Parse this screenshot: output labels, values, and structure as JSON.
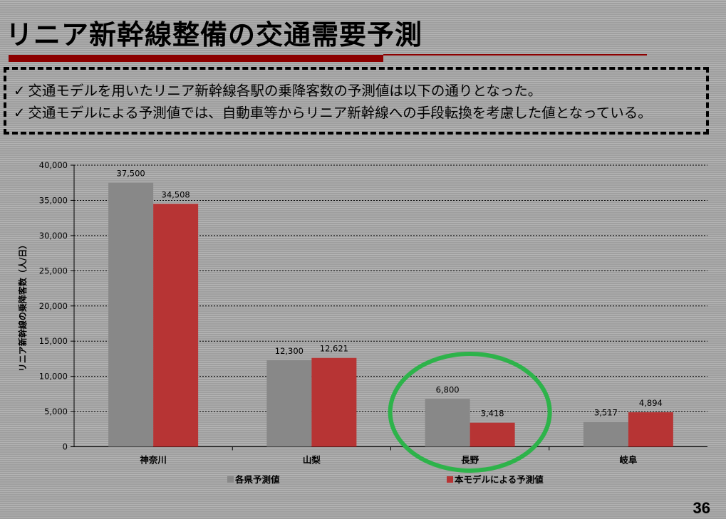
{
  "slide": {
    "title": "リニア新幹線整備の交通需要予測",
    "notes": [
      "交通モデルを用いたリニア新幹線各駅の乗降客数の予測値は以下の通りとなった。",
      "交通モデルによる予測値では、自動車等からリニア新幹線への手段転換を考慮した値となっている。"
    ],
    "check_symbol": "✓",
    "page_number": "36",
    "highlight_color": "#2db34a"
  },
  "chart_data": {
    "type": "bar",
    "categories": [
      "神奈川",
      "山梨",
      "長野",
      "岐阜"
    ],
    "series": [
      {
        "name": "各県予測値",
        "values": [
          37500,
          12300,
          6800,
          3517
        ],
        "labels": [
          "37,500",
          "12,300",
          "6,800",
          "3,517"
        ],
        "color": "#888888"
      },
      {
        "name": "本モデルによる予測値",
        "values": [
          34508,
          12621,
          3418,
          4894
        ],
        "labels": [
          "34,508",
          "12,621",
          "3,418",
          "4,894"
        ],
        "color": "#b73434"
      }
    ],
    "ylabel": "リニア新幹線の乗降客数（人/日）",
    "xlabel": "",
    "ylim": [
      0,
      40000
    ],
    "yticks": [
      0,
      5000,
      10000,
      15000,
      20000,
      25000,
      30000,
      35000,
      40000
    ],
    "ytick_labels": [
      "0",
      "5,000",
      "10,000",
      "15,000",
      "20,000",
      "25,000",
      "30,000",
      "35,000",
      "40,000"
    ],
    "grid": true,
    "legend_position": "bottom",
    "highlighted_category": "長野"
  }
}
